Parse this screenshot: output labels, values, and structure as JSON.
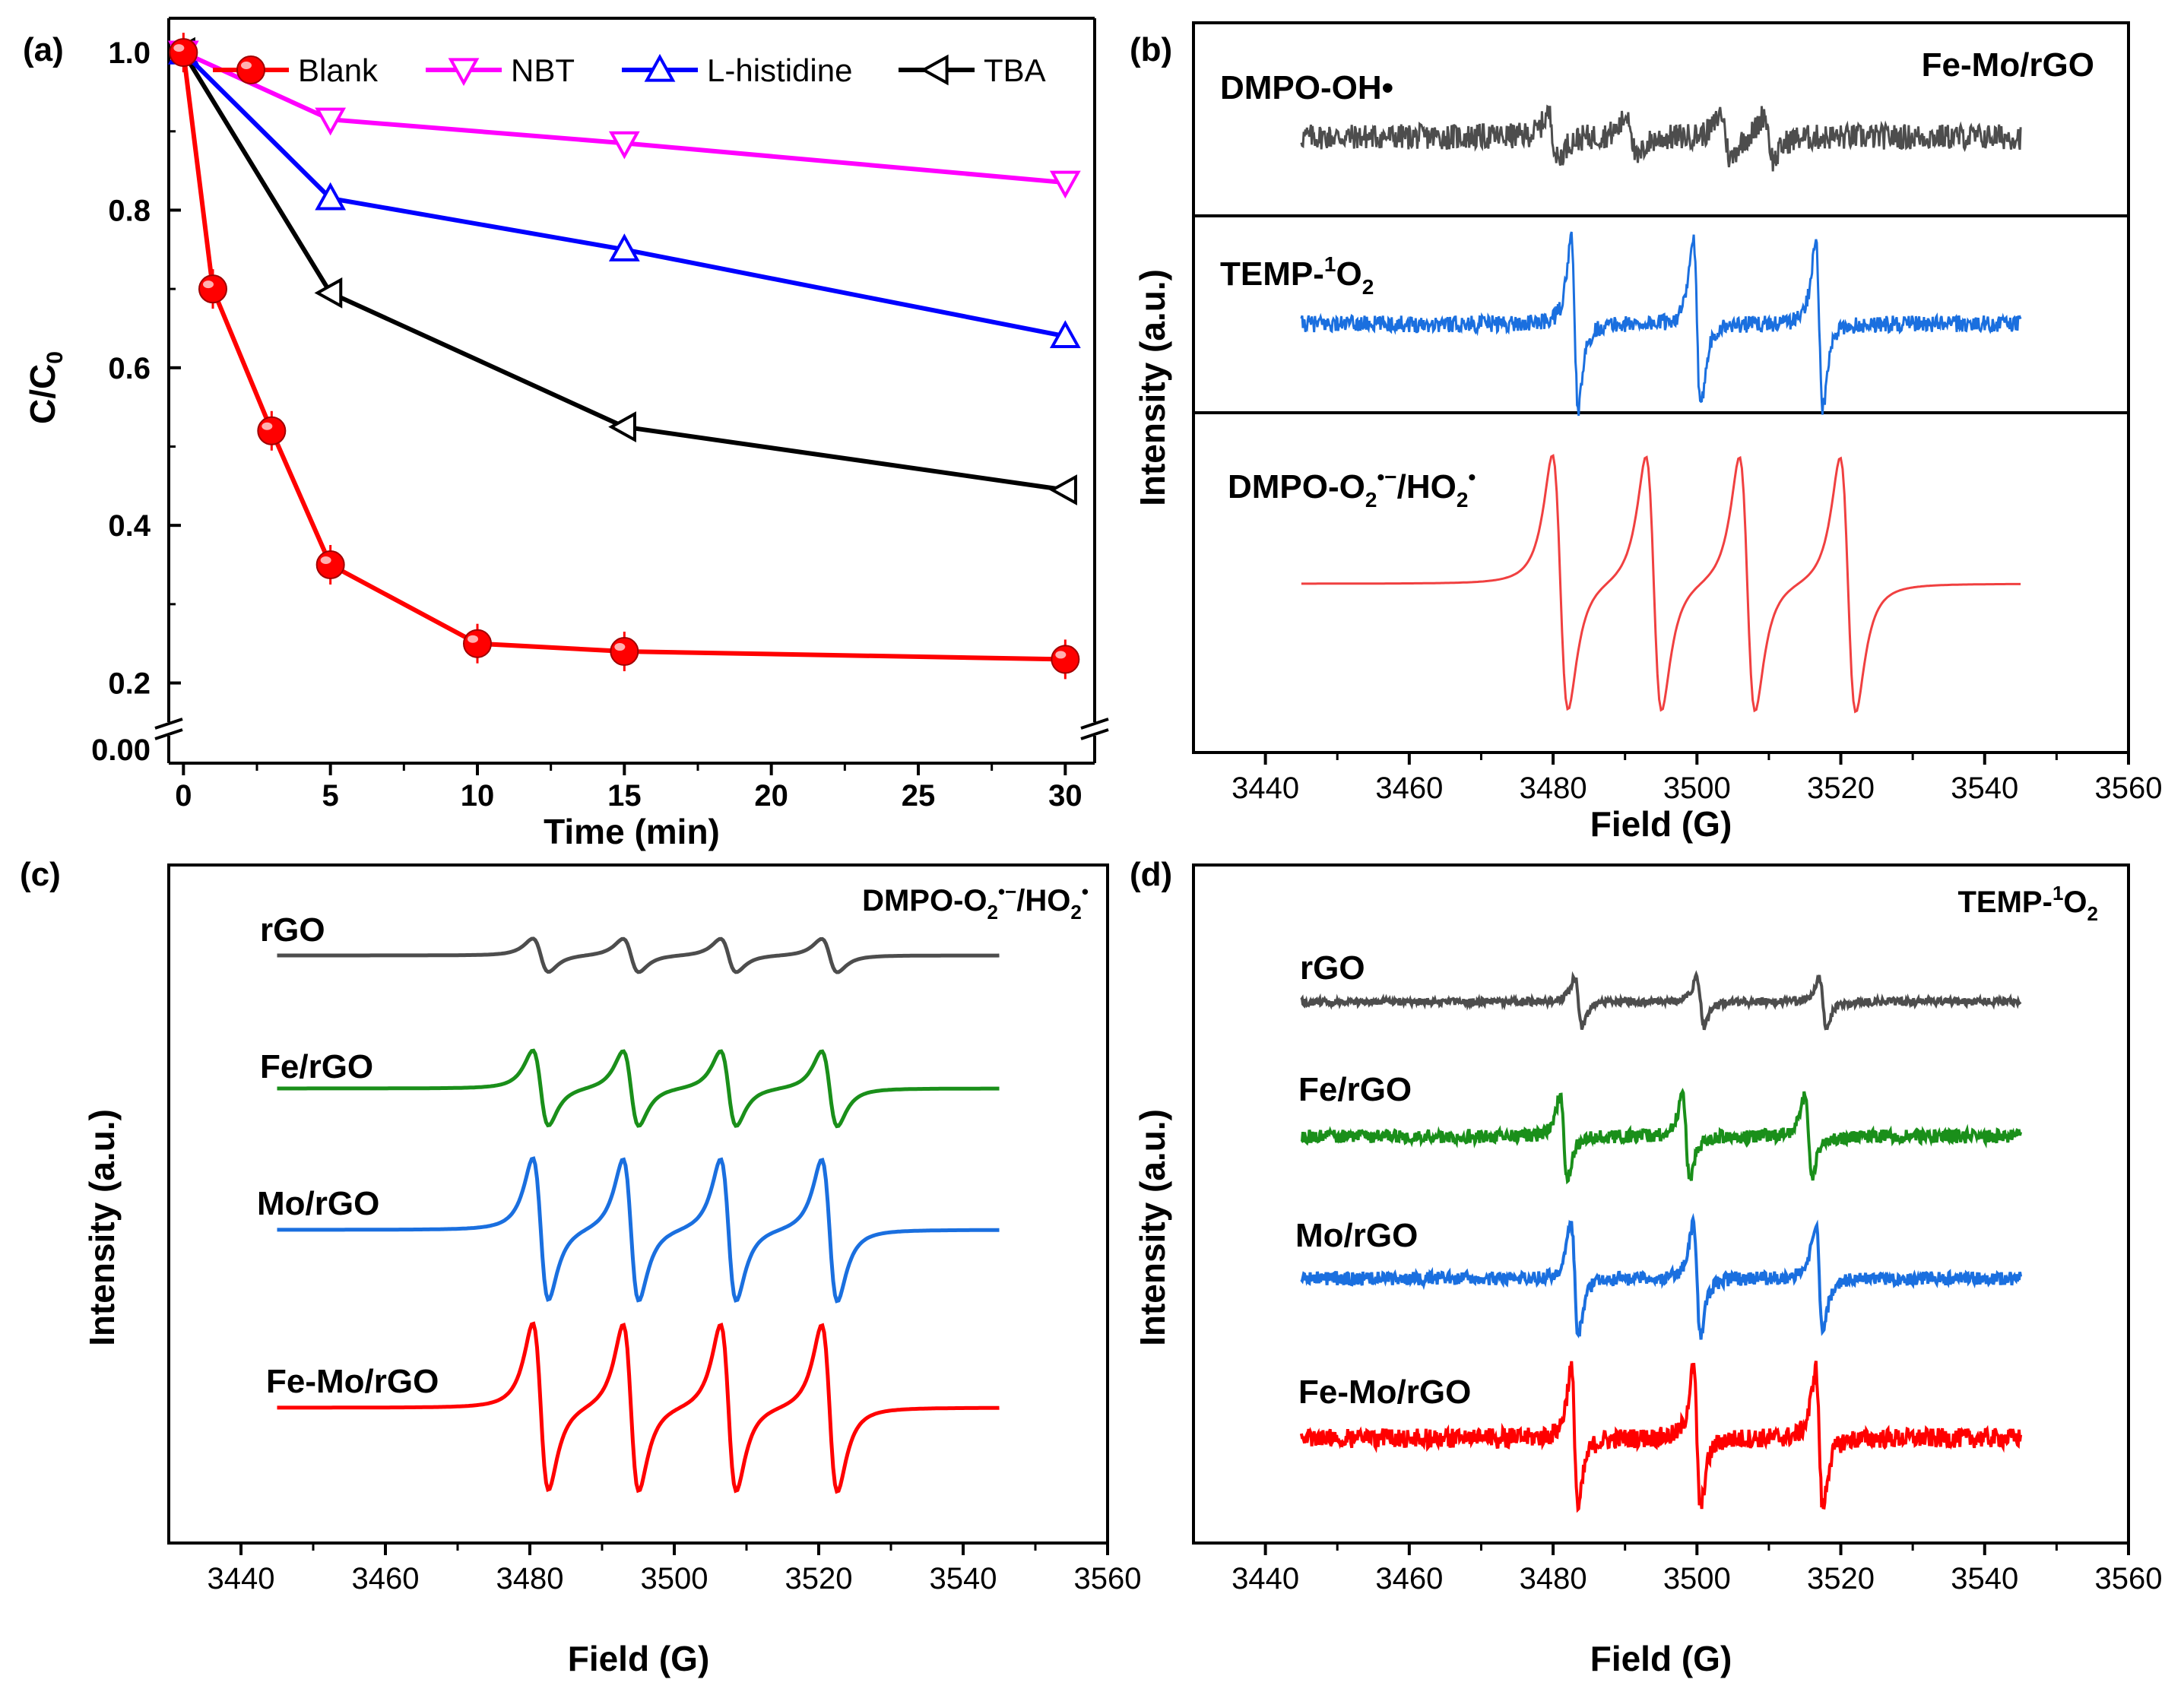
{
  "chart_data": [
    {
      "panel": "(a)",
      "type": "line",
      "xlabel": "Time (min)",
      "ylabel_main": "C/C",
      "ylabel_sub": "0",
      "xlim": [
        -0.5,
        31
      ],
      "ylim": [
        0.16,
        1.03
      ],
      "x_ticks": [
        0,
        5,
        10,
        15,
        20,
        25,
        30
      ],
      "y_ticks": [
        0.2,
        0.4,
        0.6,
        0.8,
        1.0
      ],
      "x_tick_labels": [
        "0",
        "5",
        "10",
        "15",
        "20",
        "25",
        "30"
      ],
      "y_tick_labels": [
        "0.2",
        "0.4",
        "0.6",
        "0.8",
        "1.0"
      ],
      "axis_break_label": "0.00",
      "series": [
        {
          "name": "Blank",
          "color": "#ff0000",
          "marker": "sphere",
          "x": [
            0,
            1,
            3,
            5,
            10,
            15,
            30
          ],
          "values": [
            1.0,
            0.7,
            0.52,
            0.35,
            0.25,
            0.24,
            0.23
          ]
        },
        {
          "name": "NBT",
          "color": "#ff00ff",
          "marker": "triangle-down",
          "x": [
            0,
            5,
            15,
            30
          ],
          "values": [
            1.0,
            0.915,
            0.885,
            0.835
          ]
        },
        {
          "name": "L-histidine",
          "color": "#0000ff",
          "marker": "triangle-up",
          "x": [
            0,
            5,
            15,
            30
          ],
          "values": [
            1.0,
            0.815,
            0.75,
            0.64
          ]
        },
        {
          "name": "TBA",
          "color": "#000000",
          "marker": "triangle-left",
          "x": [
            0,
            5,
            15,
            30
          ],
          "values": [
            1.0,
            0.695,
            0.525,
            0.445
          ]
        }
      ]
    },
    {
      "panel": "(b)",
      "type": "line",
      "title": "Fe-Mo/rGO",
      "xlabel": "Field (G)",
      "ylabel": "Intensity (a.u.)",
      "xlim": [
        3430,
        3560
      ],
      "x_ticks": [
        3440,
        3460,
        3480,
        3500,
        3520,
        3540,
        3560
      ],
      "x_tick_labels": [
        "3440",
        "3460",
        "3480",
        "3500",
        "3520",
        "3540",
        "3560"
      ],
      "series": [
        {
          "name": "DMPO-OH•",
          "color": "#4d4d4d",
          "kind": "noise",
          "lines": [
            3480,
            3491,
            3504,
            3510
          ],
          "amp": 0.55
        },
        {
          "name_main": "TEMP-",
          "name_sup": "1",
          "name_o": "O",
          "name_sub": "2",
          "color": "#1a6fdf",
          "kind": "triplet",
          "lines": [
            3483,
            3500,
            3517
          ],
          "amp": 1.0
        },
        {
          "name_main": "DMPO-O",
          "name_sub": "2",
          "name_sup": "•−",
          "name_tail": "/HO",
          "name_sub2": "2",
          "name_sup2": "•",
          "color": "#f04040",
          "kind": "quartet",
          "lines": [
            3481,
            3494,
            3507,
            3521
          ],
          "amp": 1.0
        }
      ]
    },
    {
      "panel": "(c)",
      "type": "line",
      "title_main": "DMPO-O",
      "title_sub": "2",
      "title_sup": "•−",
      "title_tail": "/HO",
      "title_sub2": "2",
      "title_sup2": "•",
      "xlabel": "Field (G)",
      "ylabel": "Intensity (a.u.)",
      "xlim": [
        3430,
        3560
      ],
      "x_ticks": [
        3440,
        3460,
        3480,
        3500,
        3520,
        3540,
        3560
      ],
      "x_tick_labels": [
        "3440",
        "3460",
        "3480",
        "3500",
        "3520",
        "3540",
        "3560"
      ],
      "series": [
        {
          "name": "rGO",
          "color": "#4d4d4d",
          "kind": "quartet",
          "lines": [
            3481.5,
            3494,
            3507.5,
            3521.5
          ],
          "amp": 0.2
        },
        {
          "name": "Fe/rGO",
          "color": "#1a8f1a",
          "kind": "quartet",
          "lines": [
            3481.5,
            3494,
            3507.5,
            3521.5
          ],
          "amp": 0.45
        },
        {
          "name": "Mo/rGO",
          "color": "#1a6fdf",
          "kind": "quartet",
          "lines": [
            3481.5,
            3494,
            3507.5,
            3521.5
          ],
          "amp": 0.85
        },
        {
          "name": "Fe-Mo/rGO",
          "color": "#ff0000",
          "kind": "quartet",
          "lines": [
            3481.5,
            3494,
            3507.5,
            3521.5
          ],
          "amp": 1.0
        }
      ]
    },
    {
      "panel": "(d)",
      "type": "line",
      "title_main": "TEMP-",
      "title_sup": "1",
      "title_o": "O",
      "title_sub": "2",
      "xlabel": "Field (G)",
      "ylabel": "Intensity (a.u.)",
      "xlim": [
        3430,
        3560
      ],
      "x_ticks": [
        3440,
        3460,
        3480,
        3500,
        3520,
        3540,
        3560
      ],
      "x_tick_labels": [
        "3440",
        "3460",
        "3480",
        "3500",
        "3520",
        "3540",
        "3560"
      ],
      "series": [
        {
          "name": "rGO",
          "color": "#4d4d4d",
          "kind": "triplet",
          "lines": [
            3483.5,
            3500.5,
            3517.5
          ],
          "amp": 0.35
        },
        {
          "name": "Fe/rGO",
          "color": "#1a8f1a",
          "kind": "triplet",
          "lines": [
            3481.5,
            3498.5,
            3515.5
          ],
          "amp": 0.6
        },
        {
          "name": "Mo/rGO",
          "color": "#1a6fdf",
          "kind": "triplet",
          "lines": [
            3483,
            3500,
            3517
          ],
          "amp": 0.8
        },
        {
          "name": "Fe-Mo/rGO",
          "color": "#ff0000",
          "kind": "triplet",
          "lines": [
            3483,
            3500,
            3517
          ],
          "amp": 1.0
        }
      ]
    }
  ]
}
